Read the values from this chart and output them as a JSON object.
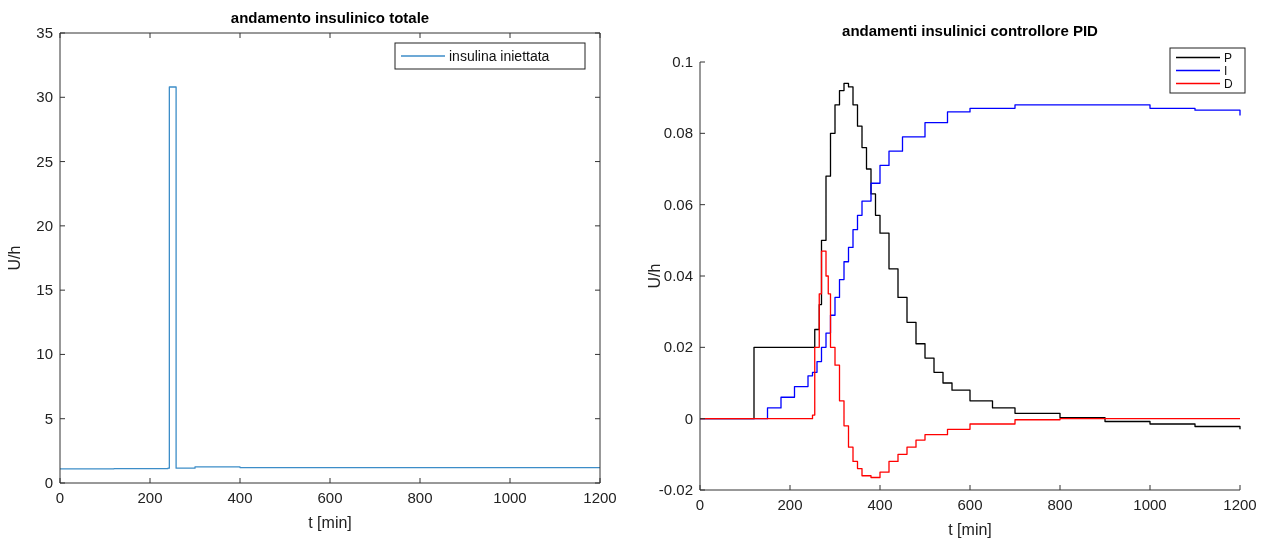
{
  "chart_data": [
    {
      "type": "step",
      "title": "andamento insulinico totale",
      "xlabel": "t [min]",
      "ylabel": "U/h",
      "xlim": [
        0,
        1200
      ],
      "ylim": [
        0,
        35
      ],
      "xticks": [
        0,
        200,
        400,
        600,
        800,
        1000,
        1200
      ],
      "yticks": [
        0,
        5,
        10,
        15,
        20,
        25,
        30,
        35
      ],
      "legend": "top right",
      "grid": false,
      "series": [
        {
          "name": "insulina iniettata",
          "color": "#3c8dc8",
          "x": [
            0,
            120,
            240,
            243,
            255,
            258,
            300,
            400,
            600,
            800,
            1000,
            1200
          ],
          "values": [
            1.1,
            1.12,
            1.15,
            30.8,
            30.8,
            1.15,
            1.25,
            1.2,
            1.2,
            1.2,
            1.2,
            1.2
          ]
        }
      ]
    },
    {
      "type": "step",
      "title": "andamenti insulinici controllore PID",
      "xlabel": "t [min]",
      "ylabel": "U/h",
      "xlim": [
        0,
        1200
      ],
      "ylim": [
        -0.02,
        0.1
      ],
      "xticks": [
        0,
        200,
        400,
        600,
        800,
        1000,
        1200
      ],
      "yticks": [
        -0.02,
        0,
        0.02,
        0.04,
        0.06,
        0.08,
        0.1
      ],
      "legend": "top right",
      "grid": false,
      "series": [
        {
          "name": "P",
          "color": "#000000",
          "x": [
            0,
            120,
            250,
            255,
            265,
            270,
            280,
            290,
            300,
            310,
            320,
            330,
            340,
            350,
            360,
            370,
            380,
            390,
            400,
            420,
            440,
            460,
            480,
            500,
            520,
            540,
            560,
            600,
            650,
            700,
            800,
            900,
            1000,
            1100,
            1200
          ],
          "values": [
            0,
            0.02,
            0.02,
            0.025,
            0.032,
            0.05,
            0.068,
            0.08,
            0.088,
            0.092,
            0.094,
            0.093,
            0.088,
            0.082,
            0.076,
            0.07,
            0.063,
            0.057,
            0.052,
            0.042,
            0.034,
            0.027,
            0.021,
            0.017,
            0.013,
            0.01,
            0.008,
            0.005,
            0.003,
            0.0015,
            0.0003,
            -0.0008,
            -0.0015,
            -0.0022,
            -0.003
          ]
        },
        {
          "name": "I",
          "color": "#0000ff",
          "x": [
            0,
            120,
            150,
            180,
            210,
            240,
            250,
            260,
            270,
            280,
            290,
            300,
            310,
            320,
            330,
            340,
            350,
            360,
            380,
            400,
            420,
            450,
            500,
            550,
            600,
            700,
            800,
            900,
            1000,
            1100,
            1200
          ],
          "values": [
            0,
            0,
            0.003,
            0.006,
            0.009,
            0.012,
            0.013,
            0.016,
            0.02,
            0.024,
            0.029,
            0.034,
            0.039,
            0.044,
            0.048,
            0.053,
            0.057,
            0.061,
            0.066,
            0.071,
            0.075,
            0.079,
            0.083,
            0.086,
            0.087,
            0.088,
            0.088,
            0.088,
            0.087,
            0.0865,
            0.085
          ]
        },
        {
          "name": "D",
          "color": "#ff0000",
          "x": [
            0,
            240,
            250,
            255,
            265,
            270,
            280,
            285,
            290,
            300,
            310,
            320,
            330,
            340,
            350,
            360,
            380,
            400,
            420,
            440,
            460,
            480,
            500,
            550,
            600,
            700,
            800,
            1200
          ],
          "values": [
            0,
            0,
            0.001,
            0.02,
            0.035,
            0.047,
            0.04,
            0.035,
            0.02,
            0.015,
            0.005,
            -0.002,
            -0.008,
            -0.012,
            -0.014,
            -0.016,
            -0.0165,
            -0.015,
            -0.012,
            -0.01,
            -0.008,
            -0.006,
            -0.0045,
            -0.003,
            -0.0015,
            -0.0003,
            0,
            0
          ]
        }
      ]
    }
  ]
}
